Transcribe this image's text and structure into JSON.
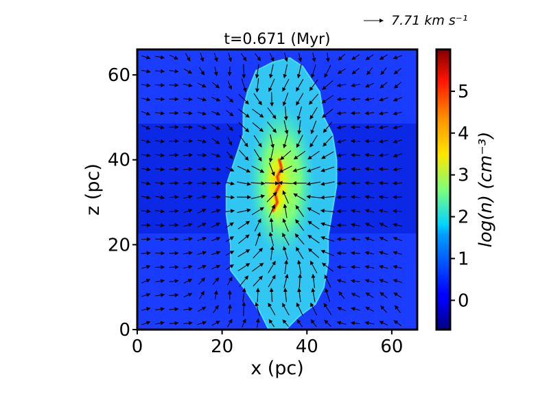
{
  "chart_data": {
    "type": "heatmap",
    "title": "t=0.671 (Myr)",
    "xlabel": "x (pc)",
    "ylabel": "z (pc)",
    "xlim": [
      0,
      66
    ],
    "ylim": [
      0,
      66
    ],
    "xticks": [
      0,
      20,
      40,
      60
    ],
    "yticks": [
      0,
      20,
      40,
      60
    ],
    "colorbar": {
      "label": "log(n) (cm⁻³)",
      "range": [
        -0.7,
        6.0
      ],
      "ticks": [
        0,
        1,
        2,
        3,
        4,
        5
      ],
      "colormap": "jet"
    },
    "quiver_key": {
      "value": 7.71,
      "label": "7.71 km s⁻¹"
    },
    "features": {
      "background_log_n": 0.3,
      "cloud": {
        "outline": [
          [
            31,
            0
          ],
          [
            29,
            4
          ],
          [
            25,
            10
          ],
          [
            22,
            14
          ],
          [
            22,
            20
          ],
          [
            21,
            27
          ],
          [
            21,
            34
          ],
          [
            23,
            40
          ],
          [
            25,
            46
          ],
          [
            25,
            52
          ],
          [
            26,
            56
          ],
          [
            28,
            61
          ],
          [
            32,
            63
          ],
          [
            36,
            64
          ],
          [
            39,
            62
          ],
          [
            43,
            56
          ],
          [
            44,
            50
          ],
          [
            46,
            46
          ],
          [
            47,
            40
          ],
          [
            47,
            34
          ],
          [
            46,
            28
          ],
          [
            45,
            22
          ],
          [
            45,
            16
          ],
          [
            44,
            10
          ],
          [
            42,
            6
          ],
          [
            38,
            3
          ],
          [
            35,
            0
          ]
        ],
        "interior_log_n": 1.3
      },
      "filament": {
        "center": [
          33,
          34
        ],
        "peak_log_n": 4.2,
        "extent_pc": [
          4,
          12
        ]
      }
    }
  }
}
